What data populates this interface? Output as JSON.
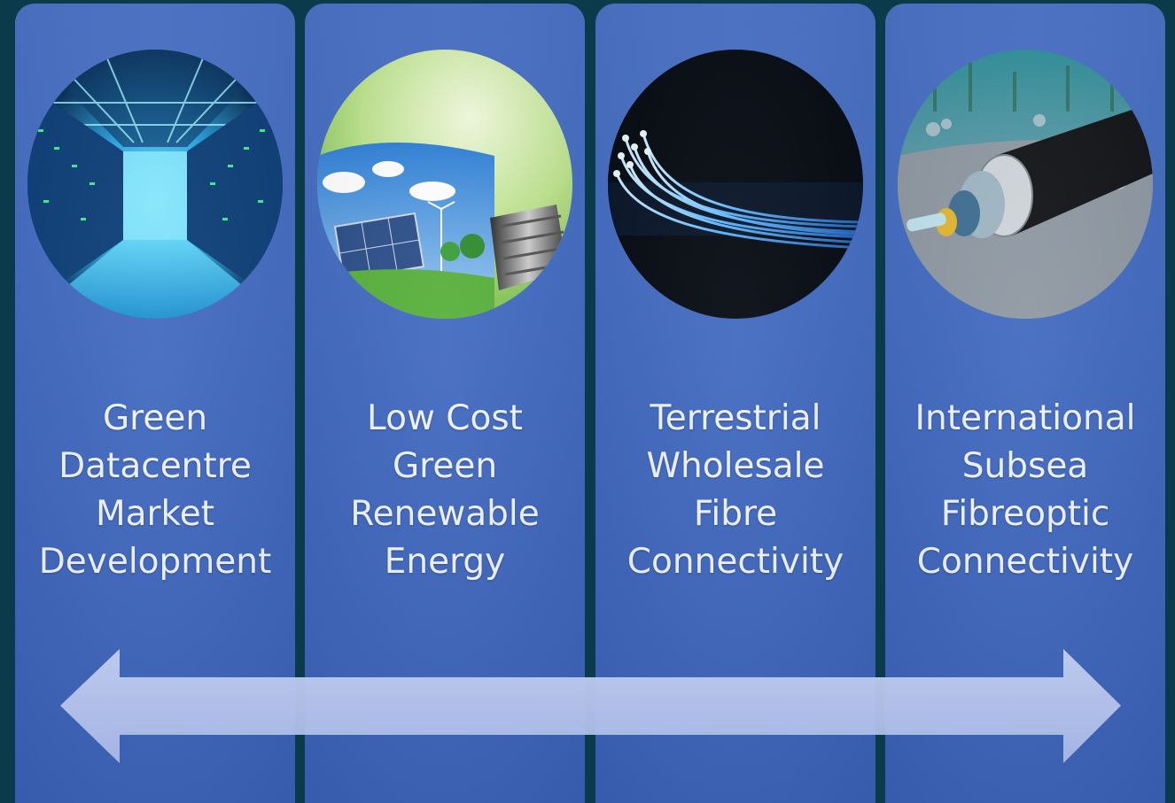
{
  "panels": [
    {
      "icon": "datacentre-corridor-icon",
      "label_lines": [
        "Green",
        "Datacentre",
        "Market",
        "Development"
      ]
    },
    {
      "icon": "lightbulb-renewable-icon",
      "label_lines": [
        "Low Cost",
        "Green",
        "Renewable",
        "Energy"
      ]
    },
    {
      "icon": "fibre-optic-strands-icon",
      "label_lines": [
        "Terrestrial",
        "Wholesale",
        "Fibre",
        "Connectivity"
      ]
    },
    {
      "icon": "subsea-cable-icon",
      "label_lines": [
        "International",
        "Subsea",
        "Fibreoptic",
        "Connectivity"
      ]
    }
  ],
  "colors": {
    "background": "#0b3a4a",
    "panel": "#4068bf",
    "arrow": "#b9c6ec",
    "text": "#eef2fb"
  }
}
